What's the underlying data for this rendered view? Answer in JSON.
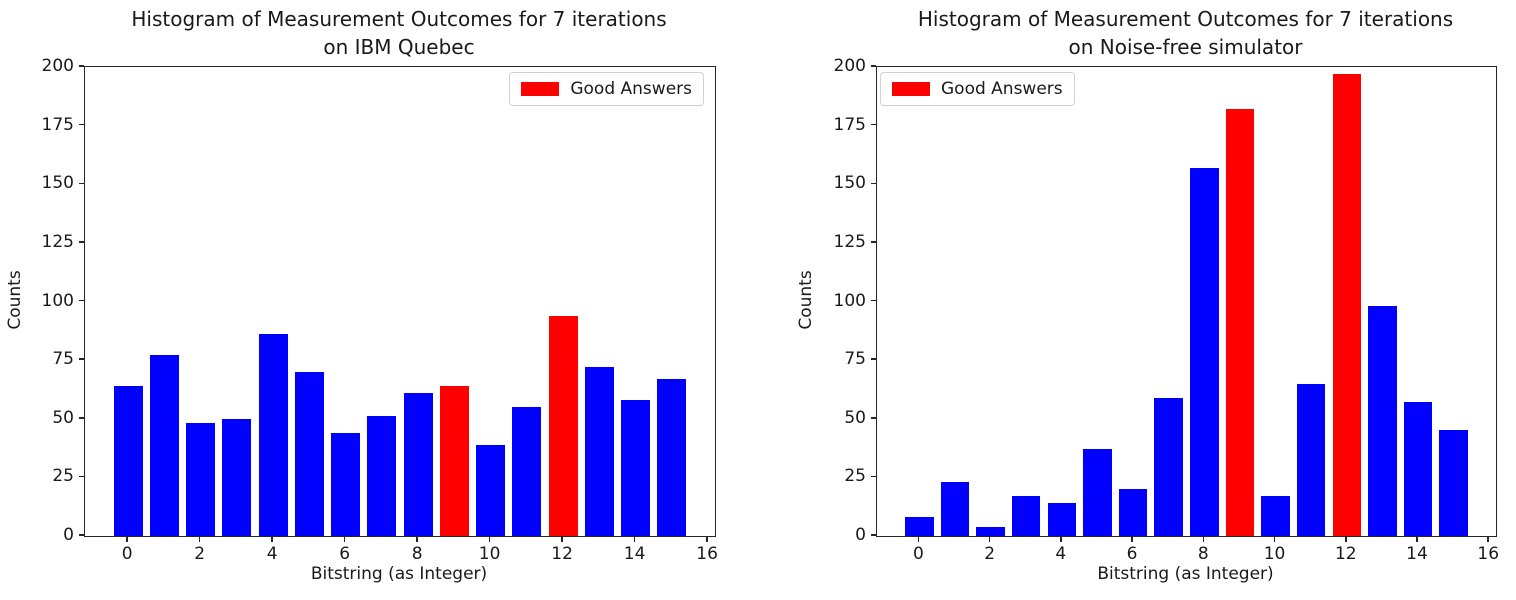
{
  "figure": {
    "background": "#ffffff",
    "bar_color": "#0000ff",
    "highlight_color": "#ff0000",
    "text_color": "#1a1a1a",
    "spine_color": "#262626",
    "legend_label": "Good Answers"
  },
  "chart_data": [
    {
      "type": "bar",
      "title": "Histogram of Measurement Outcomes for 7 iterations on IBM Quebec",
      "title_lines": [
        "Histogram of Measurement Outcomes for 7 iterations",
        "on IBM Quebec"
      ],
      "xlabel": "Bitstring (as Integer)",
      "ylabel": "Counts",
      "categories": [
        0,
        1,
        2,
        3,
        4,
        5,
        6,
        7,
        8,
        9,
        10,
        11,
        12,
        13,
        14,
        15
      ],
      "values": [
        64,
        77,
        48,
        50,
        86,
        70,
        44,
        51,
        61,
        64,
        39,
        55,
        94,
        72,
        58,
        67
      ],
      "highlight_indices": [
        9,
        12
      ],
      "bar_color": "#0000ff",
      "highlight_color": "#ff0000",
      "legend": {
        "label": "Good Answers",
        "position": "upper right"
      },
      "xlim": [
        -1.19,
        16.19
      ],
      "ylim": [
        0,
        200
      ],
      "xticks": [
        0,
        2,
        4,
        6,
        8,
        10,
        12,
        14,
        16
      ],
      "yticks": [
        0,
        25,
        50,
        75,
        100,
        125,
        150,
        175,
        200
      ],
      "bar_width": 0.8,
      "grid": false
    },
    {
      "type": "bar",
      "title": "Histogram of Measurement Outcomes for 7 iterations on Noise-free simulator",
      "title_lines": [
        "Histogram of Measurement Outcomes for 7 iterations",
        "on Noise-free simulator"
      ],
      "xlabel": "Bitstring (as Integer)",
      "ylabel": "Counts",
      "categories": [
        0,
        1,
        2,
        3,
        4,
        5,
        6,
        7,
        8,
        9,
        10,
        11,
        12,
        13,
        14,
        15
      ],
      "values": [
        8,
        23,
        4,
        17,
        14,
        37,
        20,
        59,
        157,
        182,
        17,
        65,
        197,
        98,
        57,
        45
      ],
      "highlight_indices": [
        9,
        12
      ],
      "bar_color": "#0000ff",
      "highlight_color": "#ff0000",
      "legend": {
        "label": "Good Answers",
        "position": "upper left"
      },
      "xlim": [
        -1.19,
        16.19
      ],
      "ylim": [
        0,
        200
      ],
      "xticks": [
        0,
        2,
        4,
        6,
        8,
        10,
        12,
        14,
        16
      ],
      "yticks": [
        0,
        25,
        50,
        75,
        100,
        125,
        150,
        175,
        200
      ],
      "bar_width": 0.8,
      "grid": false
    }
  ]
}
